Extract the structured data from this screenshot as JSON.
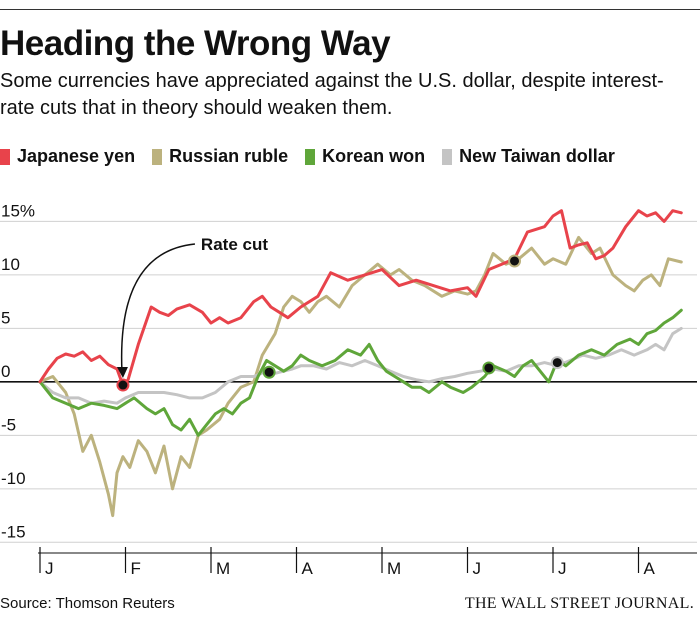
{
  "title": "Heading the Wrong Way",
  "subtitle": "Some currencies have appreciated against the U.S. dollar, despite interest-rate cuts that in theory should weaken them.",
  "legend": [
    {
      "label": "Japanese yen",
      "color": "#e8434b"
    },
    {
      "label": "Russian ruble",
      "color": "#bcb27e"
    },
    {
      "label": "Korean won",
      "color": "#5fa63a"
    },
    {
      "label": "New Taiwan dollar",
      "color": "#c4c4c4"
    }
  ],
  "source": "Source: Thomson Reuters",
  "publisher": "THE WALL STREET JOURNAL.",
  "chart_data": {
    "type": "line",
    "title": "Heading the Wrong Way",
    "xlabel": "",
    "ylabel": "",
    "x_range": [
      0,
      7.5
    ],
    "ylim": [
      -16,
      17
    ],
    "y_ticks": [
      15,
      10,
      5,
      0,
      -5,
      -10,
      -15
    ],
    "y_tick_labels": [
      "15%",
      "10",
      "5",
      "0",
      "-5",
      "-10",
      "-15"
    ],
    "month_ticks": [
      0,
      1,
      2,
      3,
      4,
      5,
      6,
      7
    ],
    "month_labels": [
      "J",
      "F",
      "M",
      "A",
      "M",
      "J",
      "J",
      "A"
    ],
    "zero_line": true,
    "series": [
      {
        "name": "Japanese yen",
        "color": "#e8434b",
        "points": [
          [
            0,
            0
          ],
          [
            0.1,
            1.2
          ],
          [
            0.2,
            2.2
          ],
          [
            0.3,
            2.6
          ],
          [
            0.4,
            2.4
          ],
          [
            0.5,
            2.8
          ],
          [
            0.6,
            2.0
          ],
          [
            0.7,
            2.4
          ],
          [
            0.8,
            1.6
          ],
          [
            0.9,
            1.2
          ],
          [
            0.97,
            -0.3
          ],
          [
            1.03,
            0.2
          ],
          [
            1.15,
            3.5
          ],
          [
            1.3,
            7.0
          ],
          [
            1.4,
            6.5
          ],
          [
            1.5,
            6.2
          ],
          [
            1.6,
            6.8
          ],
          [
            1.75,
            7.2
          ],
          [
            1.9,
            6.5
          ],
          [
            2.0,
            5.5
          ],
          [
            2.1,
            6.0
          ],
          [
            2.2,
            5.5
          ],
          [
            2.35,
            6.0
          ],
          [
            2.5,
            7.5
          ],
          [
            2.6,
            8.0
          ],
          [
            2.7,
            7.0
          ],
          [
            2.8,
            6.5
          ],
          [
            2.9,
            6.0
          ],
          [
            3.05,
            7.0
          ],
          [
            3.25,
            8.0
          ],
          [
            3.4,
            10.2
          ],
          [
            3.6,
            9.5
          ],
          [
            3.8,
            10.0
          ],
          [
            4.0,
            10.5
          ],
          [
            4.2,
            9.0
          ],
          [
            4.4,
            9.5
          ],
          [
            4.6,
            9.0
          ],
          [
            4.8,
            8.5
          ],
          [
            5.0,
            8.8
          ],
          [
            5.1,
            8.0
          ],
          [
            5.25,
            10.5
          ],
          [
            5.4,
            11.0
          ],
          [
            5.55,
            11.5
          ],
          [
            5.7,
            14.0
          ],
          [
            5.9,
            14.5
          ],
          [
            6.0,
            15.5
          ],
          [
            6.1,
            16.0
          ],
          [
            6.2,
            12.5
          ],
          [
            6.3,
            12.8
          ],
          [
            6.4,
            13.0
          ],
          [
            6.5,
            11.5
          ],
          [
            6.6,
            11.8
          ],
          [
            6.7,
            12.5
          ],
          [
            6.85,
            14.5
          ],
          [
            7.0,
            16.0
          ],
          [
            7.1,
            15.5
          ],
          [
            7.2,
            15.8
          ],
          [
            7.3,
            15.0
          ],
          [
            7.4,
            16.0
          ],
          [
            7.5,
            15.8
          ]
        ]
      },
      {
        "name": "Russian ruble",
        "color": "#bcb27e",
        "points": [
          [
            0,
            0
          ],
          [
            0.15,
            0.5
          ],
          [
            0.3,
            -1.0
          ],
          [
            0.4,
            -3.0
          ],
          [
            0.5,
            -6.5
          ],
          [
            0.6,
            -5.0
          ],
          [
            0.7,
            -7.5
          ],
          [
            0.8,
            -10.5
          ],
          [
            0.85,
            -12.5
          ],
          [
            0.9,
            -8.5
          ],
          [
            0.97,
            -7.0
          ],
          [
            1.05,
            -8.0
          ],
          [
            1.15,
            -5.5
          ],
          [
            1.25,
            -6.5
          ],
          [
            1.35,
            -8.5
          ],
          [
            1.45,
            -6.0
          ],
          [
            1.55,
            -10.0
          ],
          [
            1.65,
            -7.0
          ],
          [
            1.75,
            -8.0
          ],
          [
            1.85,
            -5.0
          ],
          [
            1.95,
            -4.5
          ],
          [
            2.1,
            -3.5
          ],
          [
            2.2,
            -2.0
          ],
          [
            2.35,
            -0.5
          ],
          [
            2.5,
            0
          ],
          [
            2.6,
            2.5
          ],
          [
            2.75,
            4.5
          ],
          [
            2.85,
            7.0
          ],
          [
            2.95,
            8.0
          ],
          [
            3.05,
            7.5
          ],
          [
            3.15,
            6.5
          ],
          [
            3.25,
            7.5
          ],
          [
            3.35,
            8.0
          ],
          [
            3.5,
            7.0
          ],
          [
            3.65,
            9.0
          ],
          [
            3.8,
            10.0
          ],
          [
            3.95,
            11.0
          ],
          [
            4.1,
            10.0
          ],
          [
            4.2,
            10.5
          ],
          [
            4.35,
            9.5
          ],
          [
            4.5,
            9.0
          ],
          [
            4.7,
            8.0
          ],
          [
            4.85,
            8.5
          ],
          [
            5.0,
            8.2
          ],
          [
            5.1,
            8.5
          ],
          [
            5.2,
            10.0
          ],
          [
            5.3,
            12.0
          ],
          [
            5.45,
            11.0
          ],
          [
            5.6,
            11.5
          ],
          [
            5.75,
            12.5
          ],
          [
            5.9,
            11.0
          ],
          [
            6.0,
            11.5
          ],
          [
            6.15,
            11.0
          ],
          [
            6.3,
            13.5
          ],
          [
            6.45,
            12.0
          ],
          [
            6.55,
            12.5
          ],
          [
            6.7,
            10.0
          ],
          [
            6.85,
            9.0
          ],
          [
            6.95,
            8.5
          ],
          [
            7.05,
            9.5
          ],
          [
            7.15,
            10.0
          ],
          [
            7.25,
            9.0
          ],
          [
            7.35,
            11.5
          ],
          [
            7.5,
            11.2
          ]
        ]
      },
      {
        "name": "Korean won",
        "color": "#5fa63a",
        "points": [
          [
            0,
            0
          ],
          [
            0.15,
            -1.5
          ],
          [
            0.3,
            -2.0
          ],
          [
            0.45,
            -2.5
          ],
          [
            0.6,
            -2.0
          ],
          [
            0.75,
            -2.2
          ],
          [
            0.9,
            -2.5
          ],
          [
            1.0,
            -2.0
          ],
          [
            1.1,
            -1.5
          ],
          [
            1.25,
            -2.5
          ],
          [
            1.35,
            -3.0
          ],
          [
            1.45,
            -2.5
          ],
          [
            1.55,
            -4.0
          ],
          [
            1.65,
            -4.5
          ],
          [
            1.75,
            -3.5
          ],
          [
            1.85,
            -5.0
          ],
          [
            1.95,
            -4.0
          ],
          [
            2.05,
            -3.0
          ],
          [
            2.15,
            -2.5
          ],
          [
            2.25,
            -3.0
          ],
          [
            2.35,
            -2.0
          ],
          [
            2.45,
            -1.5
          ],
          [
            2.55,
            0.5
          ],
          [
            2.65,
            2.0
          ],
          [
            2.75,
            1.5
          ],
          [
            2.85,
            1.0
          ],
          [
            2.95,
            1.5
          ],
          [
            3.05,
            2.5
          ],
          [
            3.15,
            2.0
          ],
          [
            3.3,
            1.5
          ],
          [
            3.45,
            2.0
          ],
          [
            3.6,
            3.0
          ],
          [
            3.75,
            2.5
          ],
          [
            3.85,
            3.5
          ],
          [
            3.95,
            2.0
          ],
          [
            4.05,
            1.0
          ],
          [
            4.15,
            0.5
          ],
          [
            4.25,
            0
          ],
          [
            4.35,
            -0.5
          ],
          [
            4.45,
            -0.5
          ],
          [
            4.55,
            -1.0
          ],
          [
            4.7,
            0
          ],
          [
            4.8,
            -0.5
          ],
          [
            4.95,
            -1.0
          ],
          [
            5.05,
            -0.5
          ],
          [
            5.2,
            0.5
          ],
          [
            5.3,
            1.5
          ],
          [
            5.45,
            1.0
          ],
          [
            5.55,
            0.5
          ],
          [
            5.65,
            1.5
          ],
          [
            5.75,
            2.0
          ],
          [
            5.85,
            1.0
          ],
          [
            5.95,
            0
          ],
          [
            6.05,
            2.0
          ],
          [
            6.15,
            1.5
          ],
          [
            6.3,
            2.5
          ],
          [
            6.45,
            3.0
          ],
          [
            6.6,
            2.5
          ],
          [
            6.75,
            3.5
          ],
          [
            6.9,
            4.0
          ],
          [
            7.0,
            3.5
          ],
          [
            7.1,
            4.5
          ],
          [
            7.2,
            4.8
          ],
          [
            7.3,
            5.5
          ],
          [
            7.4,
            6.0
          ],
          [
            7.5,
            6.7
          ]
        ]
      },
      {
        "name": "New Taiwan dollar",
        "color": "#c4c4c4",
        "points": [
          [
            0,
            0
          ],
          [
            0.15,
            -1.0
          ],
          [
            0.3,
            -1.5
          ],
          [
            0.45,
            -1.5
          ],
          [
            0.6,
            -2.0
          ],
          [
            0.75,
            -1.8
          ],
          [
            0.9,
            -2.0
          ],
          [
            1.0,
            -1.5
          ],
          [
            1.15,
            -1.0
          ],
          [
            1.3,
            -1.0
          ],
          [
            1.45,
            -1.0
          ],
          [
            1.6,
            -1.2
          ],
          [
            1.75,
            -1.5
          ],
          [
            1.9,
            -1.5
          ],
          [
            2.05,
            -1.0
          ],
          [
            2.2,
            0
          ],
          [
            2.35,
            0.5
          ],
          [
            2.5,
            0.5
          ],
          [
            2.65,
            1.0
          ],
          [
            2.75,
            0.8
          ],
          [
            2.85,
            1.0
          ],
          [
            2.95,
            1.2
          ],
          [
            3.05,
            1.5
          ],
          [
            3.2,
            1.5
          ],
          [
            3.35,
            1.2
          ],
          [
            3.5,
            1.8
          ],
          [
            3.65,
            1.5
          ],
          [
            3.8,
            2.0
          ],
          [
            3.95,
            1.5
          ],
          [
            4.1,
            1.0
          ],
          [
            4.25,
            0.5
          ],
          [
            4.4,
            0.2
          ],
          [
            4.55,
            0
          ],
          [
            4.7,
            0.3
          ],
          [
            4.85,
            0.5
          ],
          [
            5.0,
            0.8
          ],
          [
            5.15,
            1.0
          ],
          [
            5.3,
            1.2
          ],
          [
            5.45,
            1.0
          ],
          [
            5.6,
            1.5
          ],
          [
            5.75,
            1.5
          ],
          [
            5.9,
            1.8
          ],
          [
            6.05,
            1.5
          ],
          [
            6.2,
            2.0
          ],
          [
            6.35,
            2.5
          ],
          [
            6.5,
            2.2
          ],
          [
            6.65,
            2.5
          ],
          [
            6.8,
            3.0
          ],
          [
            6.95,
            2.5
          ],
          [
            7.1,
            3.0
          ],
          [
            7.2,
            3.5
          ],
          [
            7.3,
            3.0
          ],
          [
            7.4,
            4.5
          ],
          [
            7.5,
            5.0
          ]
        ]
      }
    ],
    "markers": [
      {
        "series": "Japanese yen",
        "x": 0.97,
        "y": -0.3
      },
      {
        "series": "Korean won",
        "x": 2.68,
        "y": 0.9
      },
      {
        "series": "Russian ruble",
        "x": 5.55,
        "y": 11.3
      },
      {
        "series": "Korean won",
        "x": 5.25,
        "y": 1.3
      },
      {
        "series": "New Taiwan dollar",
        "x": 6.05,
        "y": 1.8
      }
    ],
    "annotations": [
      {
        "text": "Rate cut",
        "target_x": 0.97,
        "target_y": -0.3
      }
    ]
  }
}
